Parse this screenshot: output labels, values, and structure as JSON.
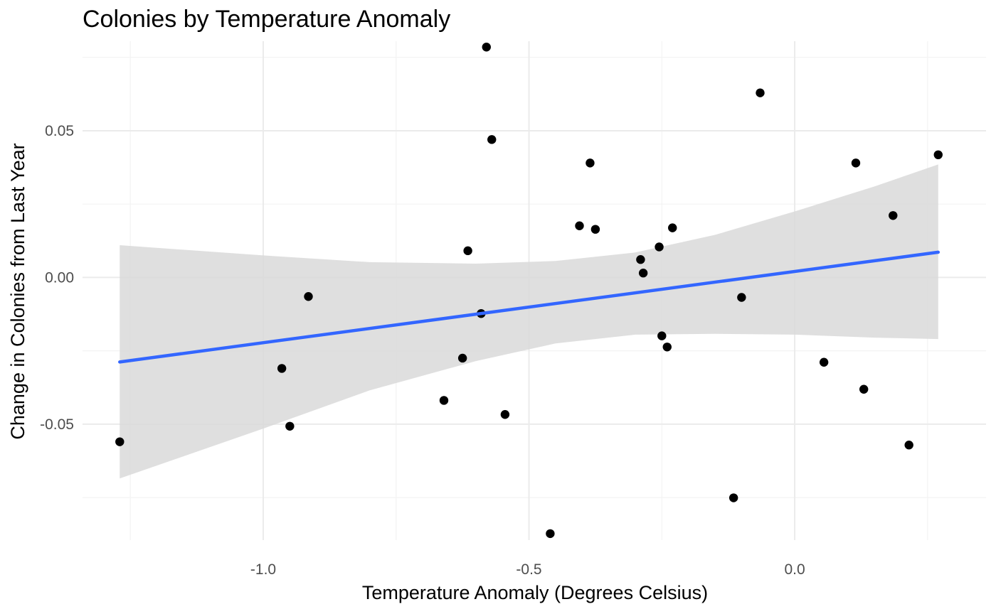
{
  "chart_data": {
    "type": "scatter",
    "title": "Colonies by Temperature Anomaly",
    "xlabel": "Temperature Anomaly (Degrees Celsius)",
    "ylabel": "Change in Colonies from Last Year",
    "xlim": [
      -1.34,
      0.36
    ],
    "ylim": [
      -0.0895,
      0.0805
    ],
    "x_major_ticks": [
      -1.0,
      -0.5,
      0.0
    ],
    "x_tick_labels": [
      "-1.0",
      "-0.5",
      "0.0"
    ],
    "x_minor_ticks": [
      -1.25,
      -0.75,
      -0.25,
      0.25
    ],
    "y_major_ticks": [
      -0.05,
      0.0,
      0.05
    ],
    "y_tick_labels": [
      "-0.05",
      "0.00",
      "0.05"
    ],
    "y_minor_ticks": [
      -0.075,
      -0.025,
      0.025,
      0.075
    ],
    "grid": true,
    "points": [
      {
        "x": -1.27,
        "y": -0.056
      },
      {
        "x": -0.965,
        "y": -0.031
      },
      {
        "x": -0.95,
        "y": -0.0507
      },
      {
        "x": -0.915,
        "y": -0.0065
      },
      {
        "x": -0.66,
        "y": -0.0419
      },
      {
        "x": -0.625,
        "y": -0.0275
      },
      {
        "x": -0.615,
        "y": 0.0091
      },
      {
        "x": -0.59,
        "y": -0.0123
      },
      {
        "x": -0.58,
        "y": 0.0785
      },
      {
        "x": -0.57,
        "y": 0.047
      },
      {
        "x": -0.545,
        "y": -0.0467
      },
      {
        "x": -0.46,
        "y": -0.0873
      },
      {
        "x": -0.405,
        "y": 0.0176
      },
      {
        "x": -0.385,
        "y": 0.039
      },
      {
        "x": -0.375,
        "y": 0.0164
      },
      {
        "x": -0.29,
        "y": 0.0061
      },
      {
        "x": -0.285,
        "y": 0.0015
      },
      {
        "x": -0.255,
        "y": 0.0104
      },
      {
        "x": -0.25,
        "y": -0.0199
      },
      {
        "x": -0.24,
        "y": -0.0237
      },
      {
        "x": -0.23,
        "y": 0.0169
      },
      {
        "x": -0.115,
        "y": -0.0751
      },
      {
        "x": -0.1,
        "y": -0.0068
      },
      {
        "x": -0.065,
        "y": 0.0629
      },
      {
        "x": 0.055,
        "y": -0.0289
      },
      {
        "x": 0.115,
        "y": 0.039
      },
      {
        "x": 0.13,
        "y": -0.0381
      },
      {
        "x": 0.185,
        "y": 0.0211
      },
      {
        "x": 0.215,
        "y": -0.0571
      },
      {
        "x": 0.27,
        "y": 0.0418
      }
    ],
    "trend_line": {
      "x": [
        -1.27,
        0.27
      ],
      "y": [
        -0.0288,
        0.0086
      ]
    },
    "confidence_band": {
      "x": [
        -1.27,
        -1.0,
        -0.8,
        -0.6,
        -0.45,
        -0.3,
        -0.15,
        0.0,
        0.15,
        0.27
      ],
      "upper": [
        0.011,
        0.0075,
        0.0052,
        0.0047,
        0.0056,
        0.0085,
        0.0145,
        0.0225,
        0.031,
        0.0385
      ],
      "lower": [
        -0.0685,
        -0.0515,
        -0.0385,
        -0.0285,
        -0.0225,
        -0.0195,
        -0.0192,
        -0.0195,
        -0.0205,
        -0.021
      ]
    },
    "colors": {
      "point": "#000000",
      "trend_line": "#3366ff",
      "band": "#d9d9d9",
      "grid_major": "#ebebeb",
      "grid_minor": "#f3f3f3"
    }
  }
}
